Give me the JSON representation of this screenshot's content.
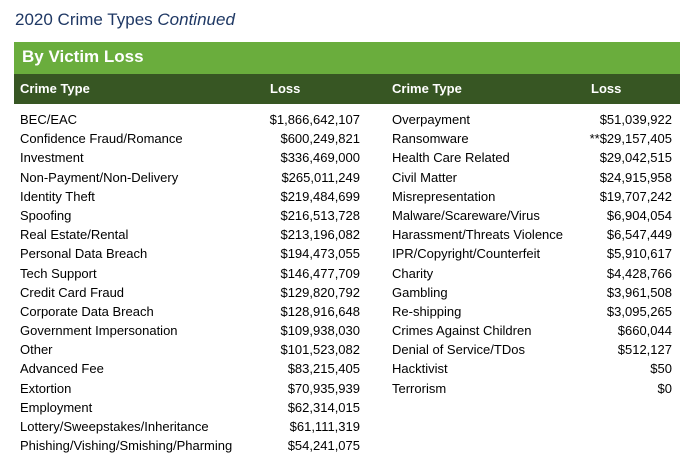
{
  "title": {
    "main": "2020 Crime Types",
    "suffix": "Continued"
  },
  "banner": "By Victim Loss",
  "headers": {
    "crime_type_left": "Crime Type",
    "loss_left": "Loss",
    "crime_type_right": "Crime Type",
    "loss_right": "Loss"
  },
  "left_rows": [
    {
      "name": "BEC/EAC",
      "loss": "$1,866,642,107"
    },
    {
      "name": "Confidence Fraud/Romance",
      "loss": "$600,249,821"
    },
    {
      "name": "Investment",
      "loss": "$336,469,000"
    },
    {
      "name": "Non-Payment/Non-Delivery",
      "loss": "$265,011,249"
    },
    {
      "name": "Identity Theft",
      "loss": "$219,484,699"
    },
    {
      "name": "Spoofing",
      "loss": "$216,513,728"
    },
    {
      "name": "Real Estate/Rental",
      "loss": "$213,196,082"
    },
    {
      "name": "Personal Data Breach",
      "loss": "$194,473,055"
    },
    {
      "name": "Tech Support",
      "loss": "$146,477,709"
    },
    {
      "name": "Credit Card Fraud",
      "loss": "$129,820,792"
    },
    {
      "name": "Corporate Data Breach",
      "loss": "$128,916,648"
    },
    {
      "name": "Government Impersonation",
      "loss": "$109,938,030"
    },
    {
      "name": "Other",
      "loss": "$101,523,082"
    },
    {
      "name": "Advanced Fee",
      "loss": "$83,215,405"
    },
    {
      "name": "Extortion",
      "loss": "$70,935,939"
    },
    {
      "name": "Employment",
      "loss": "$62,314,015"
    },
    {
      "name": "Lottery/Sweepstakes/Inheritance",
      "loss": "$61,111,319"
    },
    {
      "name": "Phishing/Vishing/Smishing/Pharming",
      "loss": "$54,241,075"
    }
  ],
  "right_rows": [
    {
      "name": "Overpayment",
      "loss": "$51,039,922"
    },
    {
      "name": "Ransomware",
      "loss": "**$29,157,405"
    },
    {
      "name": "Health Care Related",
      "loss": "$29,042,515"
    },
    {
      "name": "Civil Matter",
      "loss": "$24,915,958"
    },
    {
      "name": "Misrepresentation",
      "loss": "$19,707,242"
    },
    {
      "name": "Malware/Scareware/Virus",
      "loss": "$6,904,054"
    },
    {
      "name": "Harassment/Threats Violence",
      "loss": "$6,547,449"
    },
    {
      "name": "IPR/Copyright/Counterfeit",
      "loss": "$5,910,617"
    },
    {
      "name": "Charity",
      "loss": "$4,428,766"
    },
    {
      "name": "Gambling",
      "loss": "$3,961,508"
    },
    {
      "name": "Re-shipping",
      "loss": "$3,095,265"
    },
    {
      "name": "Crimes Against Children",
      "loss": "$660,044"
    },
    {
      "name": "Denial of Service/TDos",
      "loss": "$512,127"
    },
    {
      "name": "Hacktivist",
      "loss": "$50"
    },
    {
      "name": "Terrorism",
      "loss": "$0"
    }
  ],
  "colors": {
    "title": "#1f3864",
    "banner": "#6aad3d",
    "header": "#375623"
  }
}
